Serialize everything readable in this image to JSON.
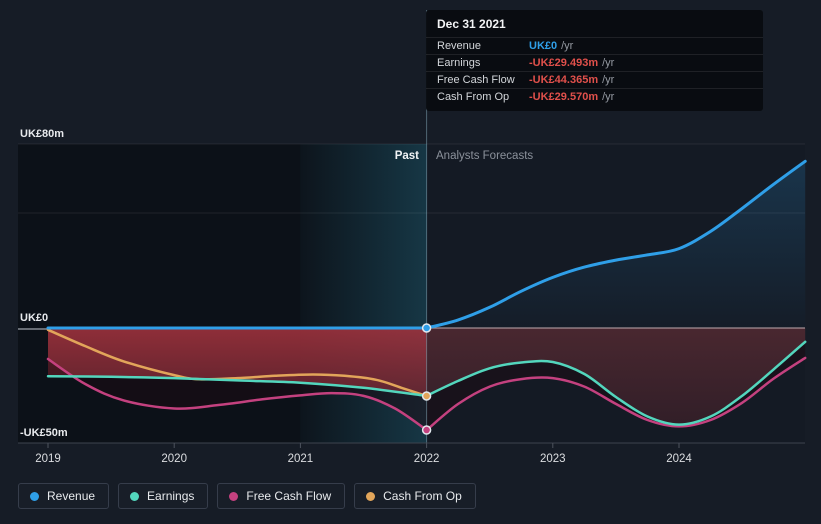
{
  "chart_data": {
    "type": "line",
    "title": "Past and forecast financials",
    "currency_prefix": "UK£",
    "x_axis": {
      "tick_years": [
        2019,
        2020,
        2021,
        2022,
        2023,
        2024
      ],
      "tick_labels": [
        "2019",
        "2020",
        "2021",
        "2022",
        "2023",
        "2024"
      ],
      "range": [
        2019,
        2025
      ]
    },
    "y_axis": {
      "labels": [
        {
          "text": "UK£80m",
          "value": 80
        },
        {
          "text": "UK£0",
          "value": 0
        },
        {
          "text": "-UK£50m",
          "value": -50
        }
      ],
      "gridline_values": [
        80,
        50
      ],
      "range": [
        -50,
        80
      ]
    },
    "divider": {
      "year": 2022,
      "past_label": "Past",
      "forecast_label": "Analysts Forecasts"
    },
    "highlight_band": {
      "from_year": 2021,
      "to_year": 2022
    },
    "series": [
      {
        "name": "Revenue",
        "color": "#2f9fe8",
        "width": 3,
        "past": [
          [
            2019,
            0
          ],
          [
            2020,
            0
          ],
          [
            2021,
            0
          ],
          [
            2022,
            0
          ]
        ],
        "forecast": [
          [
            2022,
            0
          ],
          [
            2022.25,
            3.5
          ],
          [
            2022.5,
            9
          ],
          [
            2022.75,
            16
          ],
          [
            2023,
            22
          ],
          [
            2023.25,
            26.5
          ],
          [
            2023.5,
            29.5
          ],
          [
            2023.75,
            31.8
          ],
          [
            2024,
            34.5
          ],
          [
            2024.25,
            42
          ],
          [
            2024.5,
            52
          ],
          [
            2024.75,
            62.5
          ],
          [
            2025,
            72.5
          ]
        ]
      },
      {
        "name": "Earnings",
        "color": "#53d6bd",
        "width": 2.5,
        "past": [
          [
            2019,
            -21
          ],
          [
            2019.5,
            -21.2
          ],
          [
            2020,
            -21.8
          ],
          [
            2020.5,
            -22.8
          ],
          [
            2021,
            -23.8
          ],
          [
            2021.5,
            -26
          ],
          [
            2022,
            -29.493
          ]
        ],
        "forecast": [
          [
            2022,
            -29.493
          ],
          [
            2022.25,
            -23
          ],
          [
            2022.5,
            -17.5
          ],
          [
            2022.75,
            -15
          ],
          [
            2023,
            -14.8
          ],
          [
            2023.25,
            -20
          ],
          [
            2023.5,
            -30
          ],
          [
            2023.75,
            -38.5
          ],
          [
            2024,
            -42
          ],
          [
            2024.25,
            -38.5
          ],
          [
            2024.5,
            -29.5
          ],
          [
            2024.75,
            -18
          ],
          [
            2025,
            -6
          ]
        ]
      },
      {
        "name": "Free Cash Flow",
        "color": "#c4417f",
        "width": 2.5,
        "past": [
          [
            2019,
            -13.5
          ],
          [
            2019.3,
            -24.5
          ],
          [
            2019.6,
            -31.5
          ],
          [
            2020,
            -35
          ],
          [
            2020.35,
            -33.5
          ],
          [
            2020.7,
            -31
          ],
          [
            2021,
            -29.3
          ],
          [
            2021.25,
            -28.3
          ],
          [
            2021.5,
            -29.5
          ],
          [
            2021.75,
            -35
          ],
          [
            2022,
            -44.365
          ]
        ],
        "forecast": [
          [
            2022,
            -44.365
          ],
          [
            2022.25,
            -33
          ],
          [
            2022.5,
            -25.5
          ],
          [
            2022.75,
            -22.2
          ],
          [
            2023,
            -21.8
          ],
          [
            2023.25,
            -25.5
          ],
          [
            2023.5,
            -33
          ],
          [
            2023.75,
            -40
          ],
          [
            2024,
            -42.8
          ],
          [
            2024.25,
            -40
          ],
          [
            2024.5,
            -32.5
          ],
          [
            2024.75,
            -22
          ],
          [
            2025,
            -13
          ]
        ]
      },
      {
        "name": "Cash From Op",
        "color": "#e2a55a",
        "width": 2.5,
        "past": [
          [
            2019,
            -0.8
          ],
          [
            2019.3,
            -8
          ],
          [
            2019.6,
            -14.5
          ],
          [
            2020,
            -20.5
          ],
          [
            2020.2,
            -22.3
          ],
          [
            2020.5,
            -21.8
          ],
          [
            2020.8,
            -20.8
          ],
          [
            2021.1,
            -20.2
          ],
          [
            2021.35,
            -20.8
          ],
          [
            2021.6,
            -22.5
          ],
          [
            2021.8,
            -26
          ],
          [
            2022,
            -29.57
          ]
        ],
        "forecast": null
      }
    ],
    "markers": [
      {
        "series": "Revenue",
        "year": 2022,
        "value": 0
      },
      {
        "series": "Cash From Op",
        "year": 2022,
        "value": -29.57
      },
      {
        "series": "Free Cash Flow",
        "year": 2022,
        "value": -44.365
      }
    ],
    "fills": {
      "loss_past": {
        "top": "#a1323d",
        "bottom": "#3f1b25",
        "opacity": 0.88
      },
      "loss_forecast": {
        "top": "#4f2931",
        "bottom": "#2e1c26",
        "opacity": 0.9
      },
      "earnings_fcf": {
        "color": "#1c0a12",
        "opacity": 0.5
      },
      "revenue_area": {
        "color": "#2f9fe8",
        "top_opacity": 0.2,
        "bottom_opacity": 0.02
      },
      "highlight_band_color": "#2e8fae",
      "grid_color": "rgba(255,255,255,0.08)",
      "zero_line_left": "#878c94",
      "zero_line_right": "#b7a4a8",
      "axis_line": "#3d434e",
      "divider_line": "rgba(150,195,210,0.45)",
      "plot_bg": "#141a24",
      "past_overlay": "rgba(2,5,9,0.42)"
    }
  },
  "tooltip": {
    "title": "Dec 31 2021",
    "rows": [
      {
        "label": "Revenue",
        "value": "UK£0",
        "suffix": "/yr",
        "color": "#2f9fe8"
      },
      {
        "label": "Earnings",
        "value": "-UK£29.493m",
        "suffix": "/yr",
        "color": "#e0504b"
      },
      {
        "label": "Free Cash Flow",
        "value": "-UK£44.365m",
        "suffix": "/yr",
        "color": "#e0504b"
      },
      {
        "label": "Cash From Op",
        "value": "-UK£29.570m",
        "suffix": "/yr",
        "color": "#e0504b"
      }
    ]
  },
  "legend": {
    "items": [
      {
        "label": "Revenue",
        "color": "#2f9fe8"
      },
      {
        "label": "Earnings",
        "color": "#53d6bd"
      },
      {
        "label": "Free Cash Flow",
        "color": "#c4417f"
      },
      {
        "label": "Cash From Op",
        "color": "#e2a55a"
      }
    ]
  }
}
